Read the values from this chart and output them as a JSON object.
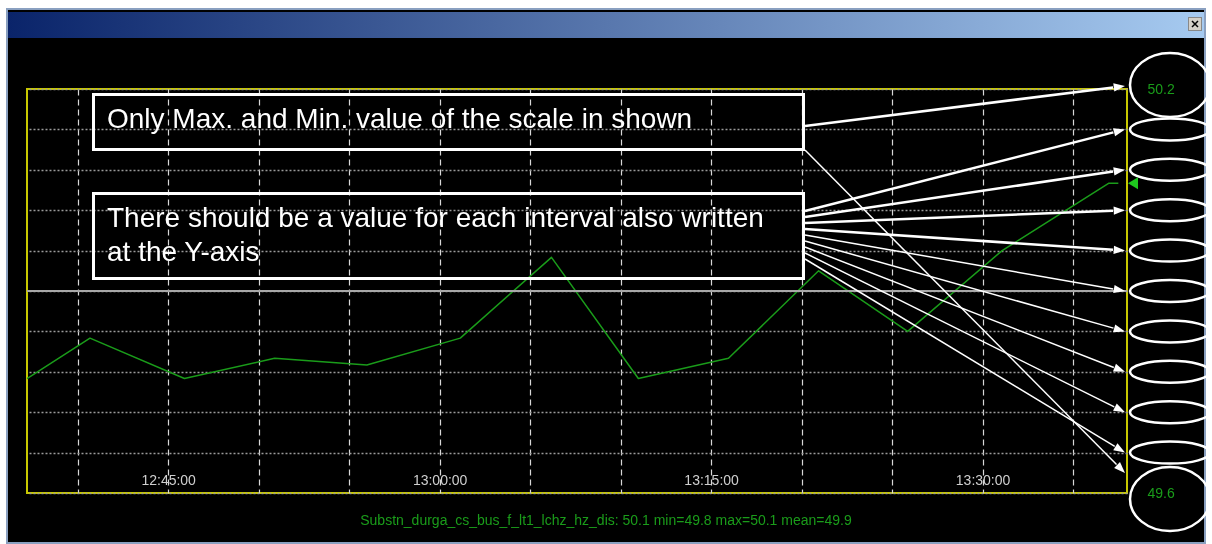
{
  "chart_data": {
    "type": "line",
    "x": [
      12.62,
      12.678,
      12.765,
      12.848,
      12.933,
      13.019,
      13.103,
      13.183,
      13.266,
      13.349,
      13.431,
      13.518,
      13.616,
      13.625
    ],
    "series": [
      {
        "color": "#1a9c1a",
        "values": [
          49.77,
          49.83,
          49.77,
          49.8,
          49.79,
          49.83,
          49.95,
          49.77,
          49.8,
          49.93,
          49.84,
          49.96,
          50.06,
          50.06
        ]
      }
    ],
    "xlim": [
      12.62,
      13.633
    ],
    "xticks": [
      {
        "value": 12.6667,
        "label": null
      },
      {
        "value": 12.75,
        "label": "12:45:00"
      },
      {
        "value": 12.8333,
        "label": null
      },
      {
        "value": 12.9167,
        "label": null
      },
      {
        "value": 13.0,
        "label": "13:00:00"
      },
      {
        "value": 13.0833,
        "label": null
      },
      {
        "value": 13.1667,
        "label": null
      },
      {
        "value": 13.25,
        "label": "13:15:00"
      },
      {
        "value": 13.3333,
        "label": null
      },
      {
        "value": 13.4167,
        "label": null
      },
      {
        "value": 13.5,
        "label": "13:30:00"
      },
      {
        "value": 13.5833,
        "label": null
      }
    ],
    "ylim": [
      49.6,
      50.2
    ],
    "yticks": [
      49.6,
      {
        "value": 49.66,
        "label": null
      },
      {
        "value": 49.72,
        "label": null
      },
      {
        "value": 49.78,
        "label": null
      },
      {
        "value": 49.84,
        "label": null
      },
      {
        "value": 49.9,
        "label": null
      },
      {
        "value": 49.96,
        "label": null
      },
      {
        "value": 50.02,
        "label": null
      },
      {
        "value": 50.08,
        "label": null
      },
      {
        "value": 50.14,
        "label": null
      },
      50.2
    ],
    "ref_lines": [
      {
        "axis": "y",
        "value": 49.9,
        "color": "#a8a8a8"
      }
    ],
    "grid": true,
    "line_style": "solid",
    "annotations": [
      "Only Max. and Min. value of the scale in shown",
      "There should be a value for each interval also written at the Y-axis",
      "Substn_durga_cs_bus_f_lt1_lchz_hz_dis: 50.1 min=49.8 max=50.1 mean=49.9"
    ]
  }
}
